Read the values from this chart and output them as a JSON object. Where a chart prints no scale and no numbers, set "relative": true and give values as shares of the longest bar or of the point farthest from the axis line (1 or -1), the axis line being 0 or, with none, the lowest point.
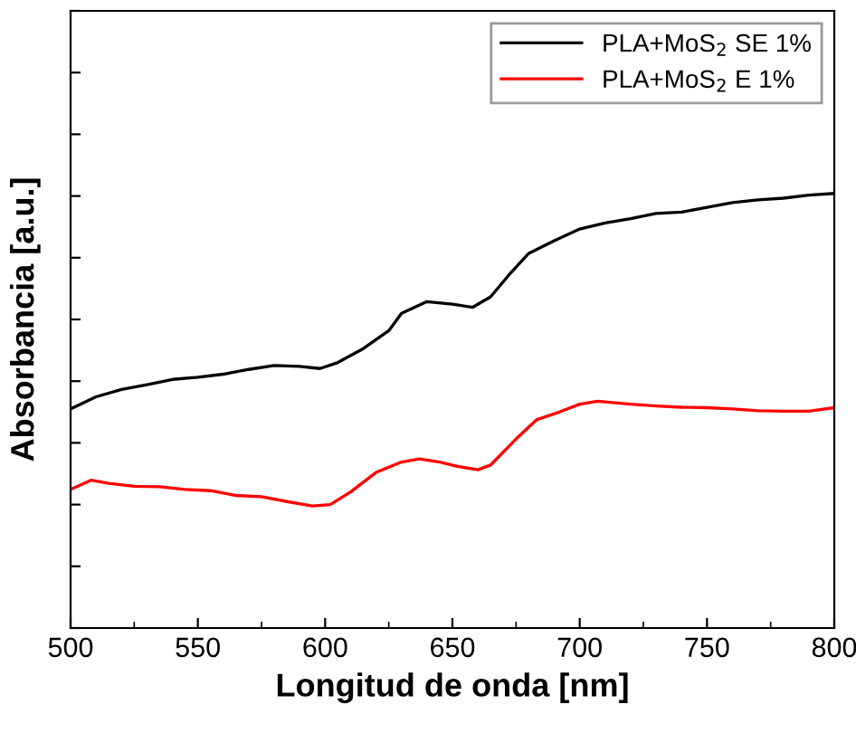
{
  "chart_data": {
    "type": "line",
    "xlabel": "Longitud de onda [nm]",
    "ylabel": "Absorbancia [a.u.]",
    "relative": true,
    "xlim": [
      500,
      800
    ],
    "xticks": [
      500,
      550,
      600,
      650,
      700,
      750,
      800
    ],
    "tick_labels": "x",
    "legend": "top right",
    "grid": false,
    "marker": "none",
    "line_style": "solid",
    "series": [
      {
        "name": "PLA+MoS$_{2}$ SE 1%",
        "color": "#000000",
        "x": [
          500,
          510,
          520,
          530,
          540,
          550,
          560,
          570,
          580,
          590,
          598,
          605,
          615,
          625,
          630,
          640,
          650,
          658,
          665,
          672,
          680,
          690,
          700,
          710,
          720,
          730,
          740,
          750,
          760,
          770,
          780,
          790,
          800
        ],
        "values": [
          0.504,
          0.532,
          0.549,
          0.56,
          0.572,
          0.577,
          0.584,
          0.595,
          0.604,
          0.602,
          0.597,
          0.611,
          0.643,
          0.684,
          0.724,
          0.751,
          0.745,
          0.738,
          0.762,
          0.811,
          0.862,
          0.891,
          0.918,
          0.932,
          0.942,
          0.954,
          0.957,
          0.968,
          0.979,
          0.985,
          0.989,
          0.996,
          1.0
        ]
      },
      {
        "name": "PLA+MoS$_{2}$ E 1%",
        "color": "#ff0000",
        "x": [
          500,
          508,
          515,
          525,
          535,
          545,
          555,
          565,
          575,
          585,
          595,
          602,
          610,
          620,
          630,
          637,
          645,
          652,
          660,
          665,
          675,
          683,
          692,
          700,
          707,
          720,
          730,
          740,
          750,
          760,
          770,
          780,
          790,
          800
        ],
        "values": [
          0.319,
          0.34,
          0.333,
          0.326,
          0.325,
          0.319,
          0.316,
          0.305,
          0.302,
          0.291,
          0.281,
          0.284,
          0.313,
          0.358,
          0.382,
          0.389,
          0.382,
          0.372,
          0.364,
          0.375,
          0.435,
          0.479,
          0.497,
          0.515,
          0.522,
          0.515,
          0.511,
          0.508,
          0.507,
          0.504,
          0.5,
          0.499,
          0.499,
          0.507
        ]
      }
    ]
  }
}
